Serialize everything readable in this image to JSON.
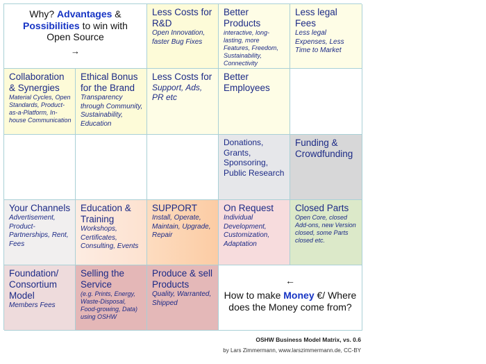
{
  "header_cell": {
    "prefix": "Why? ",
    "hl1": "Advantages",
    "mid": " & ",
    "hl2": "Possibilities",
    "suffix": " to win with Open Source",
    "arrow": "→"
  },
  "cells": [
    {
      "title": "Less Costs for R&D",
      "sub": "Open Innovation, faster Bug Fixes"
    },
    {
      "title": "Better Products",
      "sub": "interactive, long-lasting, more Features, Freedom, Sustainability, Connectivity"
    },
    {
      "title": "Less legal Fees",
      "sub": "Less legal Expenses, Less Time to Market"
    },
    {
      "title": "Collaboration & Synergies",
      "sub": "Material Cycles, Open Standards, Product-as-a-Platform, In-house Communication"
    },
    {
      "title": "Ethical Bonus for the Brand",
      "sub": "Transparency through Community, Sustainability, Education"
    },
    {
      "title": "Less Costs for",
      "sub": "Support, Ads, PR etc"
    },
    {
      "title": "Better Employees",
      "sub": ""
    },
    {
      "title": "Donations, Grants, Sponsoring, Public Research",
      "sub": ""
    },
    {
      "title": "Funding & Crowdfunding",
      "sub": ""
    },
    {
      "title": "Your Channels",
      "sub": "Advertisement, Product-Partnerships, Rent, Fees"
    },
    {
      "title": "Education & Training",
      "sub": "Workshops, Certificates, Consulting, Events"
    },
    {
      "title": "SUPPORT",
      "sub": "Install, Operate, Maintain, Upgrade, Repair"
    },
    {
      "title": "On Request",
      "sub": "Individual Development, Customization, Adaptation"
    },
    {
      "title": "Closed Parts",
      "sub": "Open Core, closed Add-ons, new Version closed, some Parts closed etc."
    },
    {
      "title": "Foundation/ Consortium Model",
      "sub": "Members Fees"
    },
    {
      "title": "Selling the Service",
      "sub": "(e.g. Prints, Energy, Waste-Disposal, Food-growing, Data) using OSHW"
    },
    {
      "title": "Produce & sell Products",
      "sub": "Quality, Warranted, Shipped"
    }
  ],
  "money_cell": {
    "arrow": "←",
    "prefix": "How to make ",
    "hl": "Money",
    "suffix": " €/ Where does the Money come from?"
  },
  "footer": {
    "title": "OSHW Business Model Matrix, vs. 0.6",
    "credit": "by Lars Zimmermann, www.larszimmermann.de, CC-BY"
  },
  "colors": {
    "text": "#1c2a86",
    "highlight": "#1634c4",
    "border": "#a9d0d6"
  }
}
